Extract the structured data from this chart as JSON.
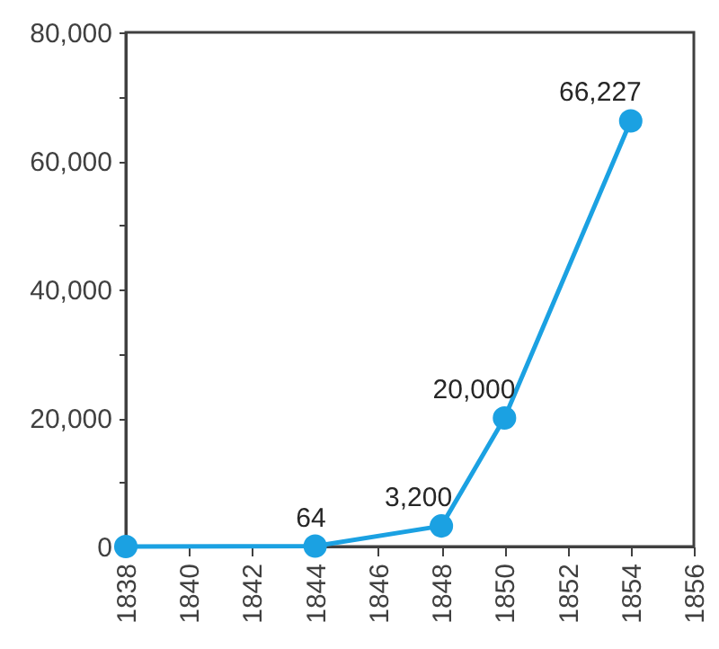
{
  "chart_data": {
    "type": "line",
    "x": [
      1838,
      1844,
      1848,
      1850,
      1854
    ],
    "series": [
      {
        "color": "#1ba1e2",
        "values": [
          0,
          64,
          3200,
          20000,
          66227
        ],
        "value_labels": [
          null,
          "64",
          "3,200",
          "20,000",
          "66,227"
        ]
      }
    ],
    "xlim": [
      1838,
      1856
    ],
    "xticks": [
      1838,
      1840,
      1842,
      1844,
      1846,
      1848,
      1850,
      1852,
      1854,
      1856
    ],
    "ylim": [
      0,
      80000
    ],
    "yticks": [
      {
        "value": 0,
        "label": "0"
      },
      {
        "value": 10000,
        "label": null
      },
      {
        "value": 20000,
        "label": "20,000"
      },
      {
        "value": 30000,
        "label": null
      },
      {
        "value": 40000,
        "label": "40,000"
      },
      {
        "value": 50000,
        "label": null
      },
      {
        "value": 60000,
        "label": "60,000"
      },
      {
        "value": 70000,
        "label": null
      },
      {
        "value": 80000,
        "label": "80,000"
      }
    ],
    "grid": false,
    "marker": "circle",
    "line_style": "solid"
  }
}
